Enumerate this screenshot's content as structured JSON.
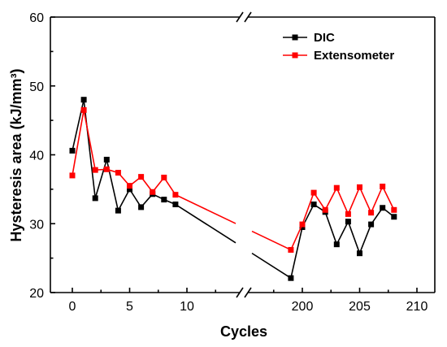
{
  "chart_data": {
    "type": "line",
    "xlabel": "Cycles",
    "ylabel": "Hysteresis area (kJ/mm³)",
    "ylim": [
      20,
      60
    ],
    "y_ticks": [
      "20",
      "30",
      "40",
      "50",
      "60"
    ],
    "x_break": {
      "between": [
        15,
        187
      ]
    },
    "x_ticks_left": [
      "0",
      "5",
      "10"
    ],
    "x_ticks_right": [
      "200",
      "205",
      "210"
    ],
    "legend_position": "top-right",
    "grid": false,
    "series": [
      {
        "name": "DIC",
        "color": "#000000",
        "x": [
          0,
          1,
          2,
          3,
          4,
          5,
          6,
          7,
          8,
          9,
          199,
          200,
          201,
          202,
          203,
          204,
          205,
          206,
          207,
          208
        ],
        "y": [
          40.6,
          48.0,
          33.7,
          39.3,
          31.9,
          35.0,
          32.4,
          34.3,
          33.5,
          32.8,
          22.1,
          29.5,
          32.8,
          31.7,
          27.0,
          30.3,
          25.7,
          29.9,
          32.3,
          31.0
        ]
      },
      {
        "name": "Extensometer",
        "color": "#ff0000",
        "x": [
          0,
          1,
          2,
          3,
          4,
          5,
          6,
          7,
          8,
          9,
          199,
          200,
          201,
          202,
          203,
          204,
          205,
          206,
          207,
          208
        ],
        "y": [
          37.0,
          46.5,
          37.8,
          37.9,
          37.4,
          35.5,
          36.8,
          34.6,
          36.7,
          34.2,
          26.2,
          29.9,
          34.5,
          32.0,
          35.2,
          31.4,
          35.3,
          31.6,
          35.4,
          32.0
        ]
      }
    ]
  }
}
